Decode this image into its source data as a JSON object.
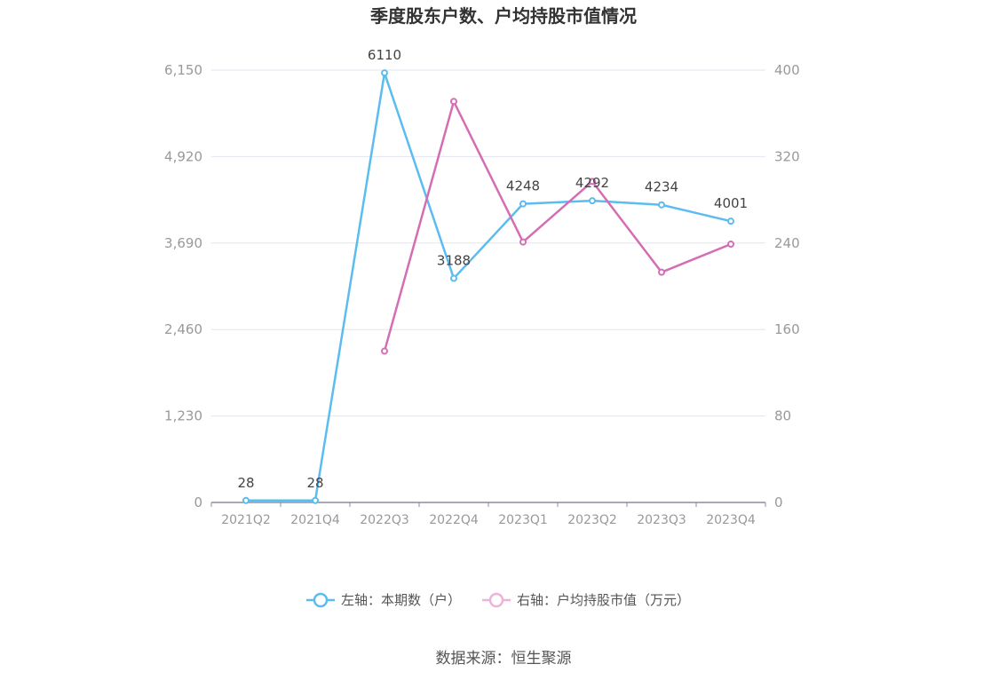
{
  "chart_data": {
    "type": "line",
    "title": "季度股东户数、户均持股市值情况",
    "categories": [
      "2021Q2",
      "2021Q4",
      "2022Q3",
      "2022Q4",
      "2023Q1",
      "2023Q2",
      "2023Q3",
      "2023Q4"
    ],
    "y_left": {
      "ticks": [
        0,
        1230,
        2460,
        3690,
        4920,
        6150
      ],
      "tick_labels": [
        "0",
        "1,230",
        "2,460",
        "3,690",
        "4,920",
        "6,150"
      ],
      "ylim": [
        0,
        6150
      ]
    },
    "y_right": {
      "ticks": [
        0,
        80,
        160,
        240,
        320,
        400
      ],
      "tick_labels": [
        "0",
        "80",
        "160",
        "240",
        "320",
        "400"
      ],
      "ylim": [
        0,
        400
      ]
    },
    "grid": true,
    "legend_position": "bottom",
    "series": [
      {
        "name": "左轴：本期数（户）",
        "axis": "left",
        "color": "#5bbcf0",
        "values": [
          28,
          28,
          6110,
          3188,
          4248,
          4292,
          4234,
          4001
        ],
        "labels": [
          "28",
          "28",
          "6110",
          "3188",
          "4248",
          "4292",
          "4234",
          "4001"
        ]
      },
      {
        "name": "右轴：户均持股市值（万元）",
        "axis": "right",
        "color": "#d56db5",
        "values": [
          null,
          null,
          140,
          371,
          241,
          297,
          213,
          239
        ]
      }
    ],
    "source": "数据来源：恒生聚源"
  }
}
